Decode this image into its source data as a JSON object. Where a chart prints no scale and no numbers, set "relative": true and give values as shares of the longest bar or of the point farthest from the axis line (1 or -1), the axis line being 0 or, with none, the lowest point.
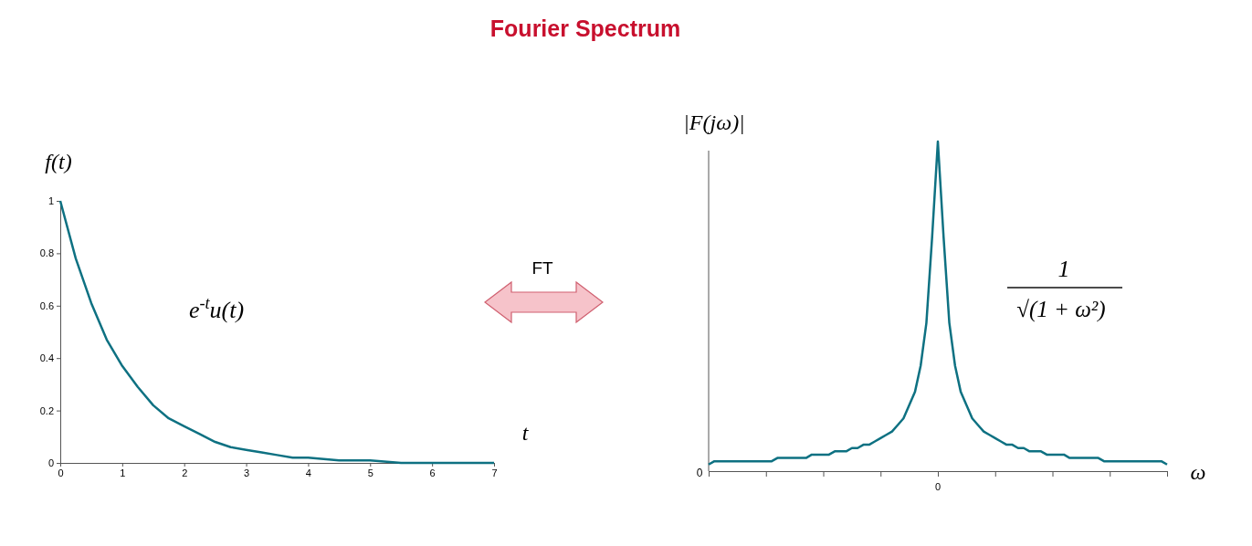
{
  "chart_data": [
    {
      "type": "line",
      "title": "Fourier Spectrum",
      "xlabel": "t",
      "ylabel": "f(t)",
      "x": [
        0,
        0.25,
        0.5,
        0.75,
        1,
        1.25,
        1.5,
        1.75,
        2,
        2.25,
        2.5,
        2.75,
        3,
        3.25,
        3.5,
        3.75,
        4,
        4.5,
        5,
        5.5,
        6,
        6.5,
        7
      ],
      "series": [
        {
          "color": "#0e7182",
          "values": [
            1,
            0.78,
            0.61,
            0.47,
            0.37,
            0.29,
            0.22,
            0.17,
            0.14,
            0.11,
            0.08,
            0.06,
            0.05,
            0.04,
            0.03,
            0.02,
            0.02,
            0.01,
            0.01,
            0,
            0,
            0,
            0
          ]
        }
      ],
      "xlim": [
        0,
        7
      ],
      "xticks": [
        0,
        1,
        2,
        3,
        4,
        5,
        6,
        7
      ],
      "ylim": [
        0,
        1
      ],
      "yticks": [
        0,
        0.2,
        0.4,
        0.6,
        0.8,
        1
      ],
      "annotations": [
        "e$^{-t}$u(t)",
        "FT"
      ]
    },
    {
      "type": "line",
      "relative": true,
      "xlabel": "ω",
      "ylabel": "|F(jω)|",
      "categories": [
        null,
        null,
        null,
        null,
        null,
        null,
        null,
        null,
        null,
        null,
        null,
        null,
        null,
        null,
        null,
        null,
        null,
        null,
        null,
        null,
        null,
        null,
        null,
        null,
        null,
        null,
        null,
        null,
        null,
        null,
        null,
        null,
        null,
        null,
        null,
        null,
        null,
        null,
        null,
        null,
        null,
        null,
        null,
        null,
        null,
        null,
        null,
        null,
        null,
        null,
        null,
        null,
        null,
        null,
        null,
        null,
        null,
        null,
        null,
        null,
        null,
        null,
        null,
        null,
        null,
        null,
        null,
        null,
        null,
        null,
        null,
        null,
        null,
        null,
        null,
        null,
        null,
        null,
        null,
        null,
        null
      ],
      "series": [
        {
          "color": "#0e7182",
          "values": [
            0.02,
            0.03,
            0.03,
            0.03,
            0.03,
            0.03,
            0.03,
            0.03,
            0.03,
            0.03,
            0.03,
            0.03,
            0.04,
            0.04,
            0.04,
            0.04,
            0.04,
            0.04,
            0.05,
            0.05,
            0.05,
            0.05,
            0.06,
            0.06,
            0.06,
            0.07,
            0.07,
            0.08,
            0.08,
            0.09,
            0.1,
            0.11,
            0.12,
            0.14,
            0.16,
            0.2,
            0.24,
            0.32,
            0.45,
            0.71,
            1,
            0.71,
            0.45,
            0.32,
            0.24,
            0.2,
            0.16,
            0.14,
            0.12,
            0.11,
            0.1,
            0.09,
            0.08,
            0.08,
            0.07,
            0.07,
            0.06,
            0.06,
            0.06,
            0.05,
            0.05,
            0.05,
            0.05,
            0.04,
            0.04,
            0.04,
            0.04,
            0.04,
            0.04,
            0.03,
            0.03,
            0.03,
            0.03,
            0.03,
            0.03,
            0.03,
            0.03,
            0.03,
            0.03,
            0.03,
            0.02
          ]
        }
      ],
      "annotations": [
        "0",
        "0",
        "1",
        "√(1 + ω²)"
      ]
    }
  ]
}
